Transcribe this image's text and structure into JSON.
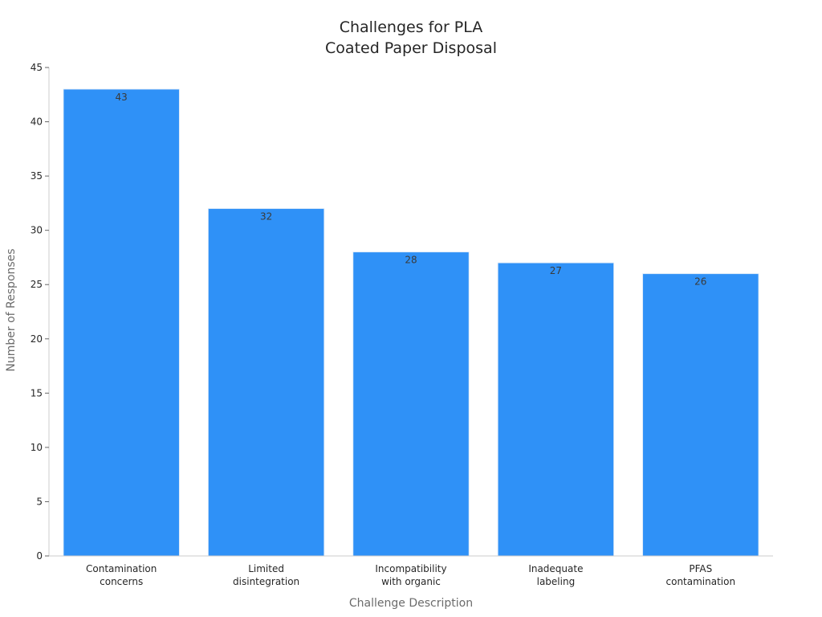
{
  "chart_data": {
    "type": "bar",
    "title_lines": [
      "Challenges for PLA",
      "Coated Paper Disposal"
    ],
    "xlabel": "Challenge Description",
    "ylabel": "Number of Responses",
    "categories": [
      [
        "Contamination",
        "concerns"
      ],
      [
        "Limited",
        "disintegration"
      ],
      [
        "Incompatibility",
        "with organic"
      ],
      [
        "Inadequate",
        "labeling"
      ],
      [
        "PFAS",
        "contamination"
      ]
    ],
    "values": [
      43,
      32,
      28,
      27,
      26
    ],
    "ylim": [
      0,
      45
    ],
    "yticks": [
      0,
      5,
      10,
      15,
      20,
      25,
      30,
      35,
      40,
      45
    ],
    "bar_color": "#2f91f7",
    "grid": false,
    "legend": "none"
  }
}
